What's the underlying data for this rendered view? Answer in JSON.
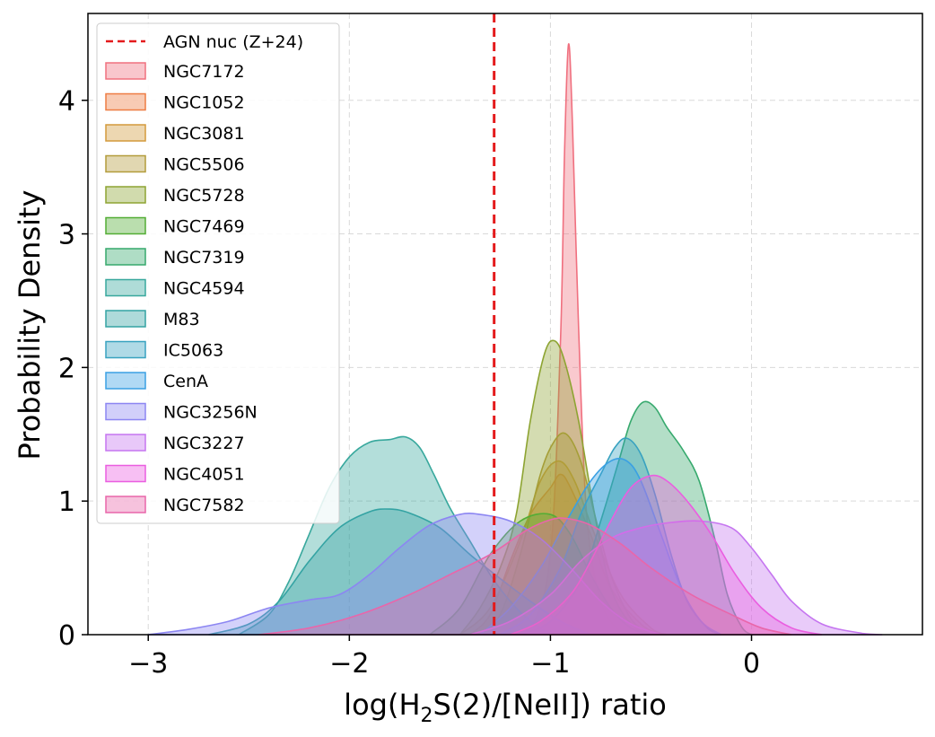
{
  "chart_data": {
    "type": "area",
    "subtype": "kde",
    "title": "",
    "xlabel_prefix": "log(H",
    "xlabel_sub": "2",
    "xlabel_suffix": "S(2)/[NeII]) ratio",
    "ylabel": "Probability Density",
    "xlim": [
      -3.3,
      0.85
    ],
    "ylim": [
      0,
      4.65
    ],
    "xticks": [
      -3,
      -2,
      -1,
      0
    ],
    "xtick_labels": [
      "−3",
      "−2",
      "−1",
      "0"
    ],
    "yticks": [
      0,
      1,
      2,
      3,
      4
    ],
    "ytick_labels": [
      "0",
      "1",
      "2",
      "3",
      "4"
    ],
    "grid": true,
    "legend_position": "top-left",
    "reference_line": {
      "label": "AGN nuc (Z+24)",
      "x": -1.28,
      "color": "#e41a1c",
      "style": "dashed"
    },
    "series": [
      {
        "name": "NGC7172",
        "color": "#f0707f",
        "points": [
          [
            -1.25,
            0
          ],
          [
            -1.1,
            0.05
          ],
          [
            -1.0,
            0.6
          ],
          [
            -0.95,
            2.2
          ],
          [
            -0.93,
            3.6
          ],
          [
            -0.91,
            4.42
          ],
          [
            -0.89,
            3.8
          ],
          [
            -0.86,
            2.3
          ],
          [
            -0.82,
            0.9
          ],
          [
            -0.75,
            0.25
          ],
          [
            -0.65,
            0.02
          ],
          [
            -0.6,
            0
          ]
        ]
      },
      {
        "name": "NGC1052",
        "color": "#ee7d43",
        "points": [
          [
            -1.4,
            0
          ],
          [
            -1.3,
            0.15
          ],
          [
            -1.2,
            0.55
          ],
          [
            -1.1,
            0.9
          ],
          [
            -1.0,
            1.1
          ],
          [
            -0.95,
            1.2
          ],
          [
            -0.9,
            1.1
          ],
          [
            -0.8,
            0.75
          ],
          [
            -0.7,
            0.35
          ],
          [
            -0.55,
            0.08
          ],
          [
            -0.45,
            0
          ]
        ]
      },
      {
        "name": "NGC3081",
        "color": "#d39a3c",
        "points": [
          [
            -1.45,
            0
          ],
          [
            -1.3,
            0.2
          ],
          [
            -1.15,
            0.7
          ],
          [
            -1.05,
            1.15
          ],
          [
            -0.96,
            1.3
          ],
          [
            -0.88,
            1.15
          ],
          [
            -0.78,
            0.75
          ],
          [
            -0.65,
            0.3
          ],
          [
            -0.5,
            0.05
          ],
          [
            -0.42,
            0
          ]
        ]
      },
      {
        "name": "NGC5506",
        "color": "#b39c3b",
        "points": [
          [
            -1.35,
            0
          ],
          [
            -1.25,
            0.15
          ],
          [
            -1.15,
            0.6
          ],
          [
            -1.05,
            1.2
          ],
          [
            -0.98,
            1.45
          ],
          [
            -0.92,
            1.5
          ],
          [
            -0.85,
            1.3
          ],
          [
            -0.78,
            0.9
          ],
          [
            -0.7,
            0.45
          ],
          [
            -0.6,
            0.12
          ],
          [
            -0.5,
            0
          ]
        ]
      },
      {
        "name": "NGC5728",
        "color": "#8da432",
        "points": [
          [
            -1.45,
            0
          ],
          [
            -1.35,
            0.2
          ],
          [
            -1.25,
            0.5
          ],
          [
            -1.17,
            0.9
          ],
          [
            -1.1,
            1.6
          ],
          [
            -1.03,
            2.1
          ],
          [
            -0.98,
            2.2
          ],
          [
            -0.93,
            2.05
          ],
          [
            -0.86,
            1.6
          ],
          [
            -0.78,
            0.9
          ],
          [
            -0.7,
            0.35
          ],
          [
            -0.6,
            0.08
          ],
          [
            -0.5,
            0
          ]
        ]
      },
      {
        "name": "NGC7469",
        "color": "#53ad35",
        "points": [
          [
            -1.6,
            0
          ],
          [
            -1.45,
            0.2
          ],
          [
            -1.3,
            0.6
          ],
          [
            -1.15,
            0.85
          ],
          [
            -1.0,
            0.9
          ],
          [
            -0.9,
            0.75
          ],
          [
            -0.8,
            0.45
          ],
          [
            -0.7,
            0.2
          ],
          [
            -0.6,
            0.05
          ],
          [
            -0.5,
            0
          ]
        ]
      },
      {
        "name": "NGC7319",
        "color": "#36a96d",
        "points": [
          [
            -1.15,
            0
          ],
          [
            -1.0,
            0.1
          ],
          [
            -0.85,
            0.4
          ],
          [
            -0.75,
            0.85
          ],
          [
            -0.66,
            1.3
          ],
          [
            -0.6,
            1.6
          ],
          [
            -0.54,
            1.74
          ],
          [
            -0.48,
            1.7
          ],
          [
            -0.42,
            1.55
          ],
          [
            -0.34,
            1.38
          ],
          [
            -0.26,
            1.15
          ],
          [
            -0.18,
            0.7
          ],
          [
            -0.12,
            0.3
          ],
          [
            -0.05,
            0.06
          ],
          [
            0.0,
            0
          ]
        ]
      },
      {
        "name": "NGC4594",
        "color": "#38a89d",
        "points": [
          [
            -2.55,
            0
          ],
          [
            -2.4,
            0.15
          ],
          [
            -2.3,
            0.4
          ],
          [
            -2.2,
            0.75
          ],
          [
            -2.1,
            1.1
          ],
          [
            -2.0,
            1.33
          ],
          [
            -1.9,
            1.44
          ],
          [
            -1.8,
            1.46
          ],
          [
            -1.72,
            1.48
          ],
          [
            -1.65,
            1.4
          ],
          [
            -1.58,
            1.2
          ],
          [
            -1.5,
            0.95
          ],
          [
            -1.4,
            0.7
          ],
          [
            -1.3,
            0.45
          ],
          [
            -1.2,
            0.25
          ],
          [
            -1.1,
            0.1
          ],
          [
            -1.0,
            0
          ]
        ]
      },
      {
        "name": "M83",
        "color": "#34a3a3",
        "points": [
          [
            -2.7,
            0
          ],
          [
            -2.5,
            0.08
          ],
          [
            -2.35,
            0.25
          ],
          [
            -2.2,
            0.55
          ],
          [
            -2.05,
            0.8
          ],
          [
            -1.9,
            0.92
          ],
          [
            -1.8,
            0.94
          ],
          [
            -1.7,
            0.91
          ],
          [
            -1.55,
            0.8
          ],
          [
            -1.4,
            0.6
          ],
          [
            -1.25,
            0.42
          ],
          [
            -1.1,
            0.25
          ],
          [
            -0.95,
            0.1
          ],
          [
            -0.8,
            0
          ]
        ]
      },
      {
        "name": "IC5063",
        "color": "#38a2c0",
        "points": [
          [
            -1.25,
            0
          ],
          [
            -1.1,
            0.15
          ],
          [
            -0.95,
            0.5
          ],
          [
            -0.85,
            0.9
          ],
          [
            -0.75,
            1.2
          ],
          [
            -0.68,
            1.4
          ],
          [
            -0.62,
            1.47
          ],
          [
            -0.55,
            1.35
          ],
          [
            -0.48,
            1.05
          ],
          [
            -0.4,
            0.6
          ],
          [
            -0.32,
            0.25
          ],
          [
            -0.22,
            0.05
          ],
          [
            -0.15,
            0
          ]
        ]
      },
      {
        "name": "CenA",
        "color": "#3aa0e3",
        "points": [
          [
            -1.35,
            0
          ],
          [
            -1.2,
            0.2
          ],
          [
            -1.05,
            0.5
          ],
          [
            -0.92,
            0.85
          ],
          [
            -0.8,
            1.15
          ],
          [
            -0.7,
            1.3
          ],
          [
            -0.62,
            1.3
          ],
          [
            -0.55,
            1.15
          ],
          [
            -0.45,
            0.75
          ],
          [
            -0.35,
            0.35
          ],
          [
            -0.25,
            0.1
          ],
          [
            -0.15,
            0
          ]
        ]
      },
      {
        "name": "NGC3256N",
        "color": "#8c86f2",
        "points": [
          [
            -3.0,
            0
          ],
          [
            -2.8,
            0.04
          ],
          [
            -2.6,
            0.1
          ],
          [
            -2.4,
            0.2
          ],
          [
            -2.2,
            0.26
          ],
          [
            -2.05,
            0.3
          ],
          [
            -1.9,
            0.45
          ],
          [
            -1.75,
            0.65
          ],
          [
            -1.6,
            0.82
          ],
          [
            -1.45,
            0.9
          ],
          [
            -1.35,
            0.9
          ],
          [
            -1.2,
            0.85
          ],
          [
            -1.05,
            0.72
          ],
          [
            -0.9,
            0.5
          ],
          [
            -0.75,
            0.25
          ],
          [
            -0.6,
            0.08
          ],
          [
            -0.45,
            0
          ]
        ]
      },
      {
        "name": "NGC3227",
        "color": "#c575f0",
        "points": [
          [
            -1.4,
            0
          ],
          [
            -1.2,
            0.1
          ],
          [
            -1.0,
            0.3
          ],
          [
            -0.85,
            0.55
          ],
          [
            -0.7,
            0.72
          ],
          [
            -0.55,
            0.8
          ],
          [
            -0.4,
            0.84
          ],
          [
            -0.25,
            0.85
          ],
          [
            -0.1,
            0.8
          ],
          [
            0.0,
            0.65
          ],
          [
            0.1,
            0.45
          ],
          [
            0.2,
            0.25
          ],
          [
            0.35,
            0.08
          ],
          [
            0.55,
            0.01
          ],
          [
            0.65,
            0
          ]
        ]
      },
      {
        "name": "NGC4051",
        "color": "#ea5ee0",
        "points": [
          [
            -1.2,
            0
          ],
          [
            -1.05,
            0.1
          ],
          [
            -0.9,
            0.3
          ],
          [
            -0.8,
            0.55
          ],
          [
            -0.7,
            0.85
          ],
          [
            -0.6,
            1.1
          ],
          [
            -0.5,
            1.19
          ],
          [
            -0.42,
            1.15
          ],
          [
            -0.32,
            1.0
          ],
          [
            -0.2,
            0.75
          ],
          [
            -0.08,
            0.45
          ],
          [
            0.05,
            0.2
          ],
          [
            0.2,
            0.05
          ],
          [
            0.35,
            0
          ]
        ]
      },
      {
        "name": "NGC7582",
        "color": "#e966aa",
        "points": [
          [
            -2.45,
            0
          ],
          [
            -2.2,
            0.05
          ],
          [
            -1.95,
            0.15
          ],
          [
            -1.7,
            0.3
          ],
          [
            -1.5,
            0.45
          ],
          [
            -1.3,
            0.6
          ],
          [
            -1.12,
            0.78
          ],
          [
            -1.0,
            0.86
          ],
          [
            -0.92,
            0.87
          ],
          [
            -0.8,
            0.82
          ],
          [
            -0.65,
            0.68
          ],
          [
            -0.5,
            0.5
          ],
          [
            -0.3,
            0.3
          ],
          [
            -0.1,
            0.15
          ],
          [
            0.05,
            0.05
          ],
          [
            0.2,
            0
          ]
        ]
      }
    ]
  }
}
